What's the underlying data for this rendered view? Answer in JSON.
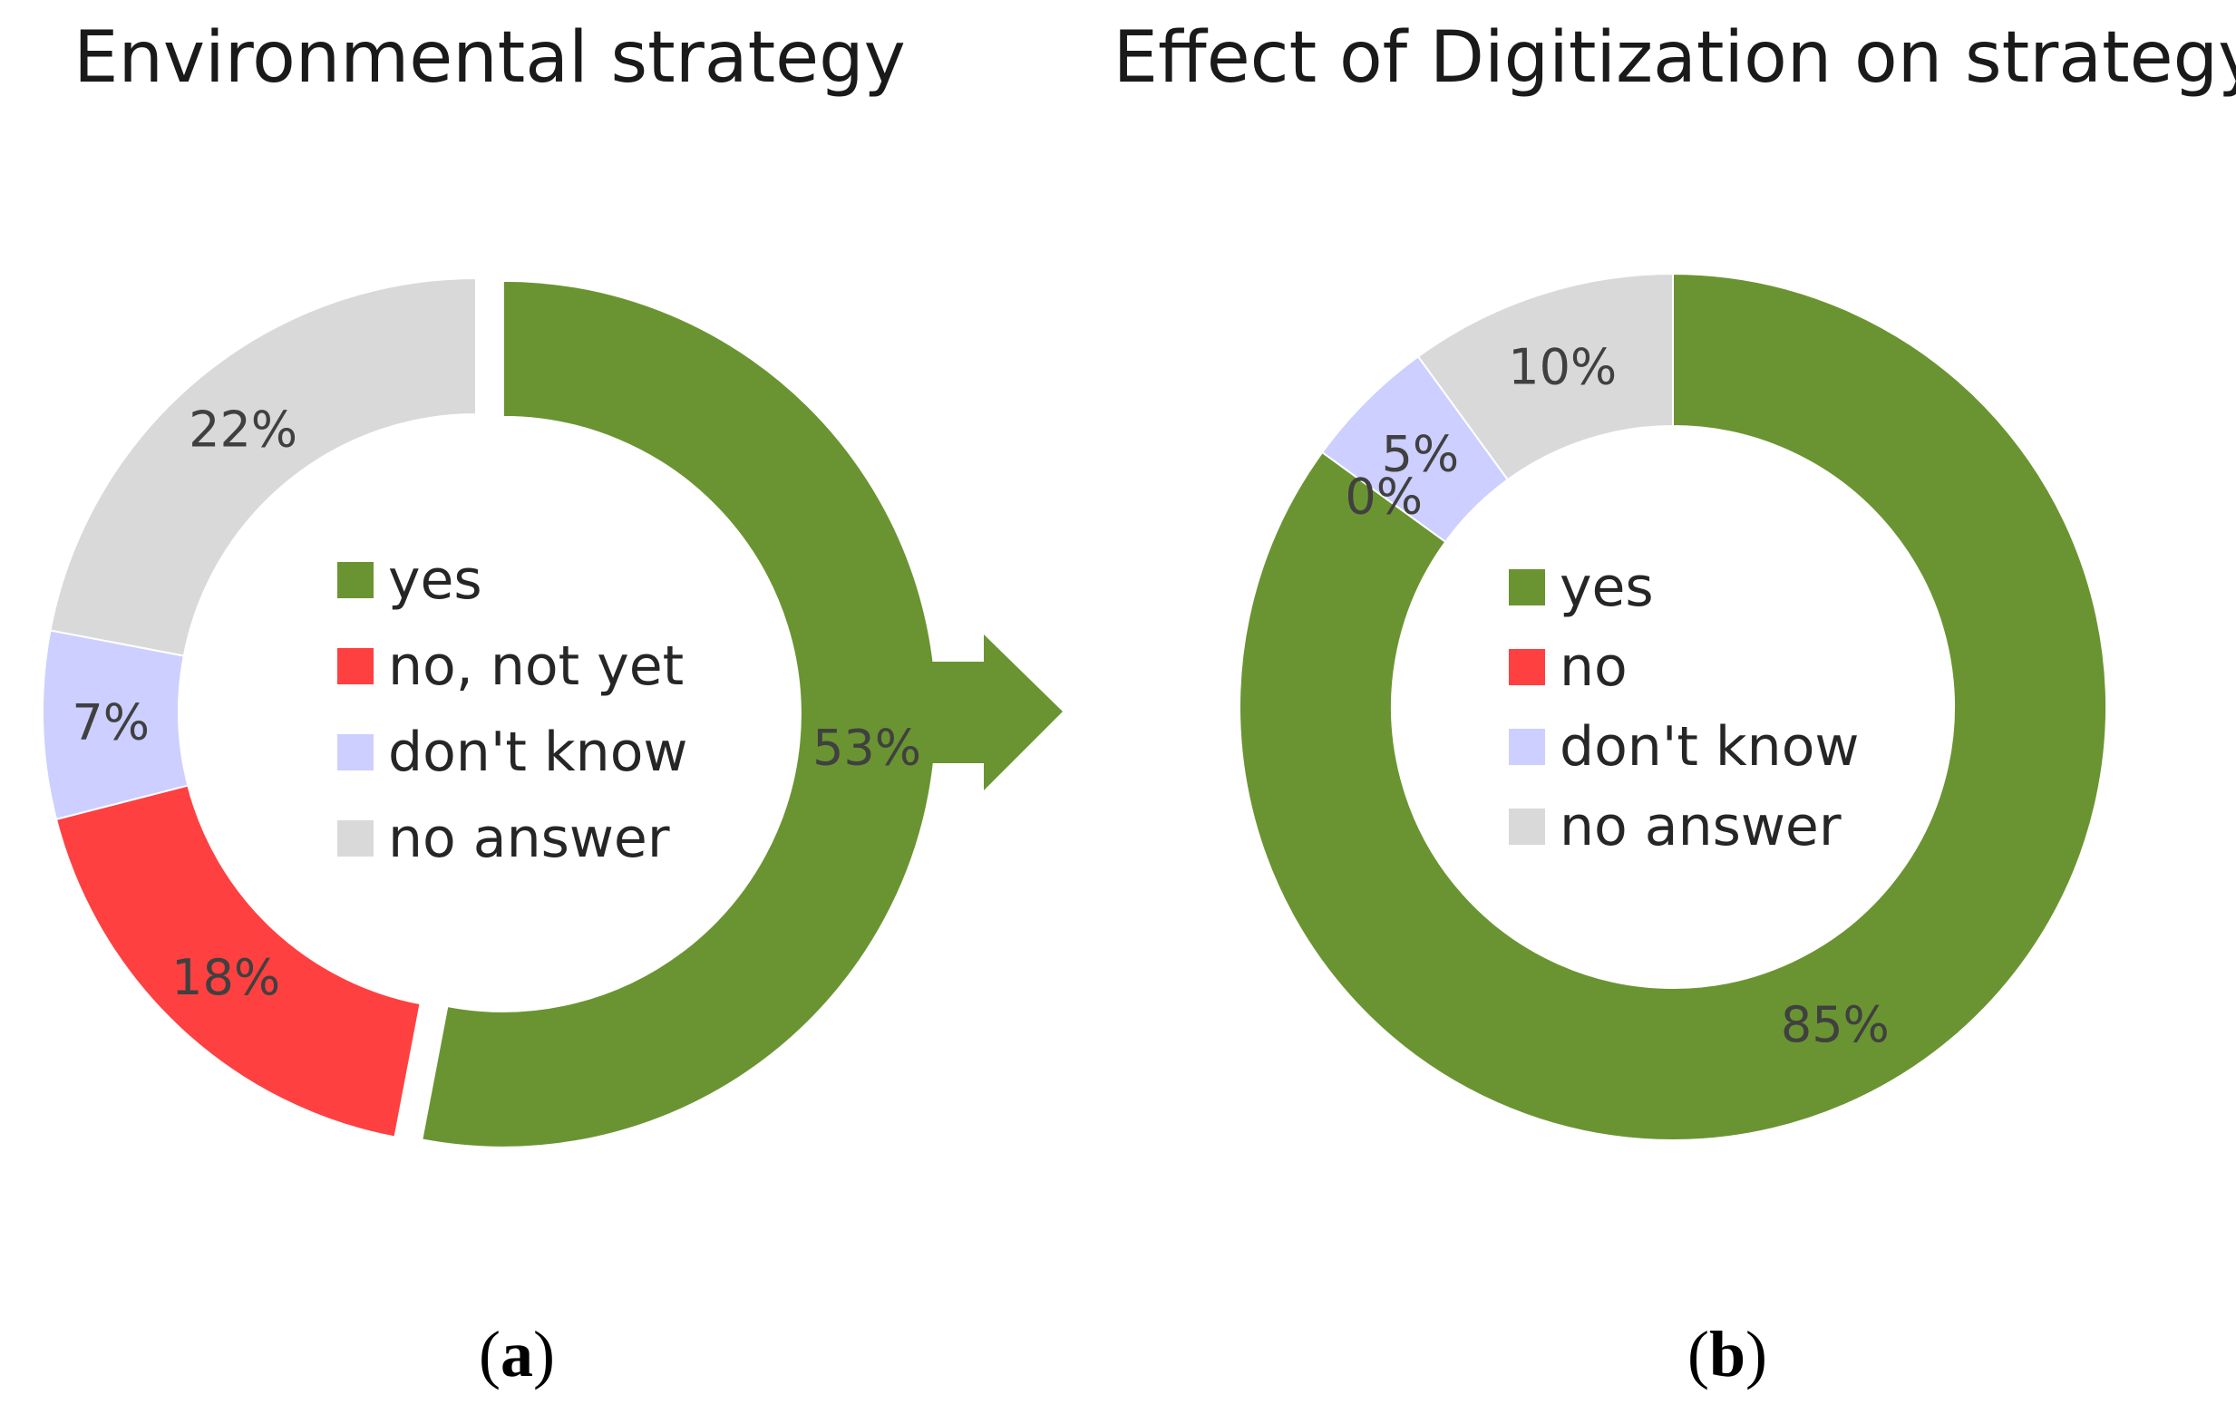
{
  "arrow_color": "#6a9431",
  "chart_data": [
    {
      "type": "donut",
      "title": "Environmental strategy",
      "caption_letter": "a",
      "legend_position": "center",
      "categories": [
        "yes",
        "no, not yet",
        "don't know",
        "no answer"
      ],
      "values": [
        53,
        18,
        7,
        22
      ],
      "labels": [
        "53%",
        "18%",
        "7%",
        "22%"
      ],
      "colors": [
        "#6a9431",
        "#ff4040",
        "#cccfff",
        "#d9d9d9"
      ],
      "exploded": [
        true,
        false,
        false,
        false
      ]
    },
    {
      "type": "donut",
      "title": "Effect of Digitization on strategy",
      "caption_letter": "b",
      "legend_position": "center",
      "categories": [
        "yes",
        "no",
        "don't know",
        "no answer"
      ],
      "values": [
        85,
        0,
        5,
        10
      ],
      "labels": [
        "85%",
        "0%",
        "5%",
        "10%"
      ],
      "colors": [
        "#6a9431",
        "#ff4040",
        "#cccfff",
        "#d9d9d9"
      ],
      "exploded": [
        false,
        false,
        false,
        false
      ]
    }
  ]
}
